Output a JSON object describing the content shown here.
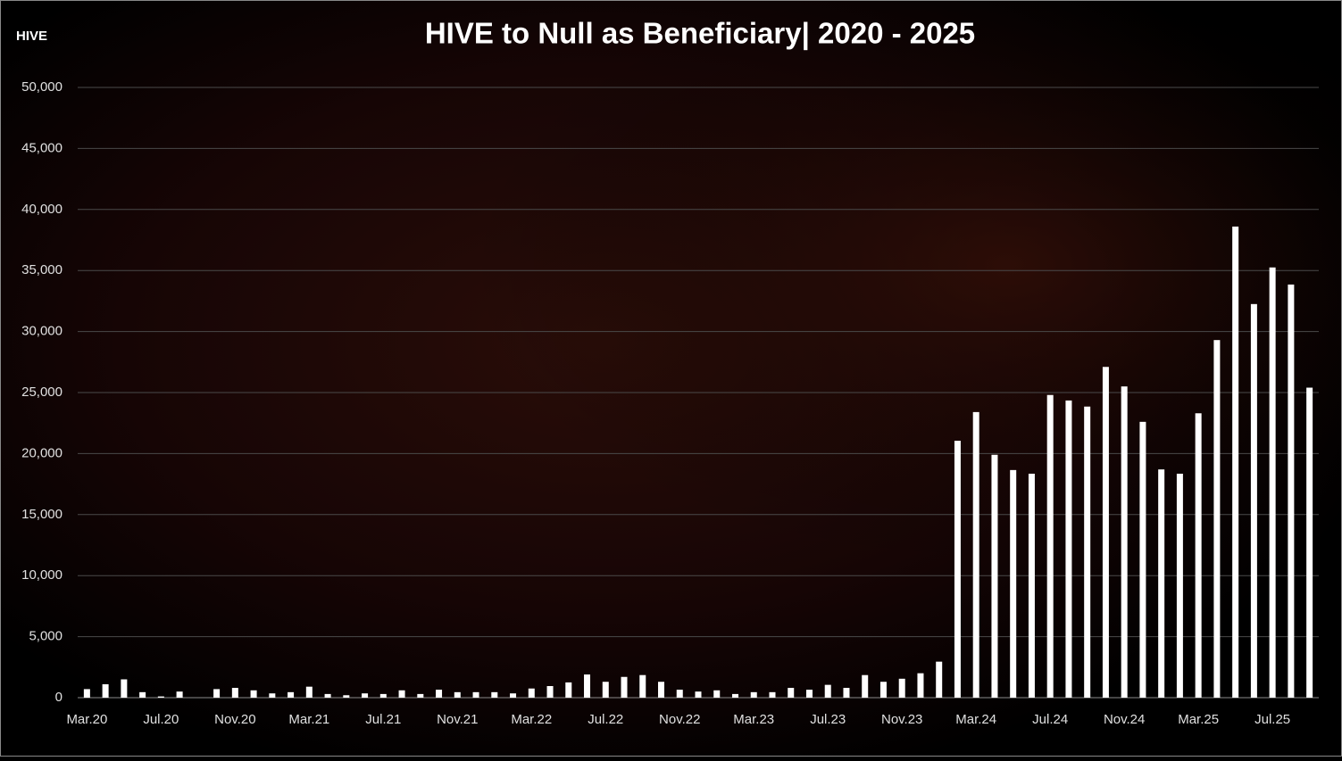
{
  "chart_data": {
    "type": "bar",
    "title": "HIVE to Null as Beneficiary| 2020 - 2025",
    "y_label": "HIVE",
    "categories": [
      "Mar.20",
      null,
      null,
      null,
      "Jul.20",
      null,
      null,
      null,
      "Nov.20",
      null,
      null,
      null,
      "Mar.21",
      null,
      null,
      null,
      "Jul.21",
      null,
      null,
      null,
      "Nov.21",
      null,
      null,
      null,
      "Mar.22",
      null,
      null,
      null,
      "Jul.22",
      null,
      null,
      null,
      "Nov.22",
      null,
      null,
      null,
      "Mar.23",
      null,
      null,
      null,
      "Jul.23",
      null,
      null,
      null,
      "Nov.23",
      null,
      null,
      null,
      "Mar.24",
      null,
      null,
      null,
      "Jul.24",
      null,
      null,
      null,
      "Nov.24",
      null,
      null,
      null,
      "Mar.25",
      null,
      null,
      null,
      "Jul.25",
      null,
      null
    ],
    "values": [
      700,
      1100,
      1500,
      450,
      100,
      500,
      0,
      700,
      800,
      600,
      350,
      450,
      900,
      300,
      200,
      350,
      300,
      600,
      300,
      650,
      450,
      450,
      450,
      350,
      750,
      950,
      1250,
      1900,
      1300,
      1700,
      1850,
      1300,
      650,
      500,
      600,
      300,
      450,
      450,
      800,
      650,
      1050,
      800,
      1850,
      1300,
      1550,
      2000,
      2950,
      21050,
      23400,
      19900,
      18650,
      18350,
      24800,
      24350,
      23850,
      27100,
      25500,
      22600,
      18700,
      18350,
      23300,
      29300,
      38600,
      32250,
      35250,
      33850,
      25400
    ],
    "color": "#ffffff",
    "ylim": [
      0,
      50000
    ],
    "yticks": [
      0,
      {
        "value": 5000,
        "label": "5,000"
      },
      {
        "value": 10000,
        "label": "10,000"
      },
      {
        "value": 15000,
        "label": "15,000"
      },
      {
        "value": 20000,
        "label": "20,000"
      },
      {
        "value": 25000,
        "label": "25,000"
      },
      {
        "value": 30000,
        "label": "30,000"
      },
      {
        "value": 35000,
        "label": "35,000"
      },
      {
        "value": 40000,
        "label": "40,000"
      },
      {
        "value": 45000,
        "label": "45,000"
      },
      {
        "value": 50000,
        "label": "50,000"
      }
    ],
    "grid": true
  }
}
